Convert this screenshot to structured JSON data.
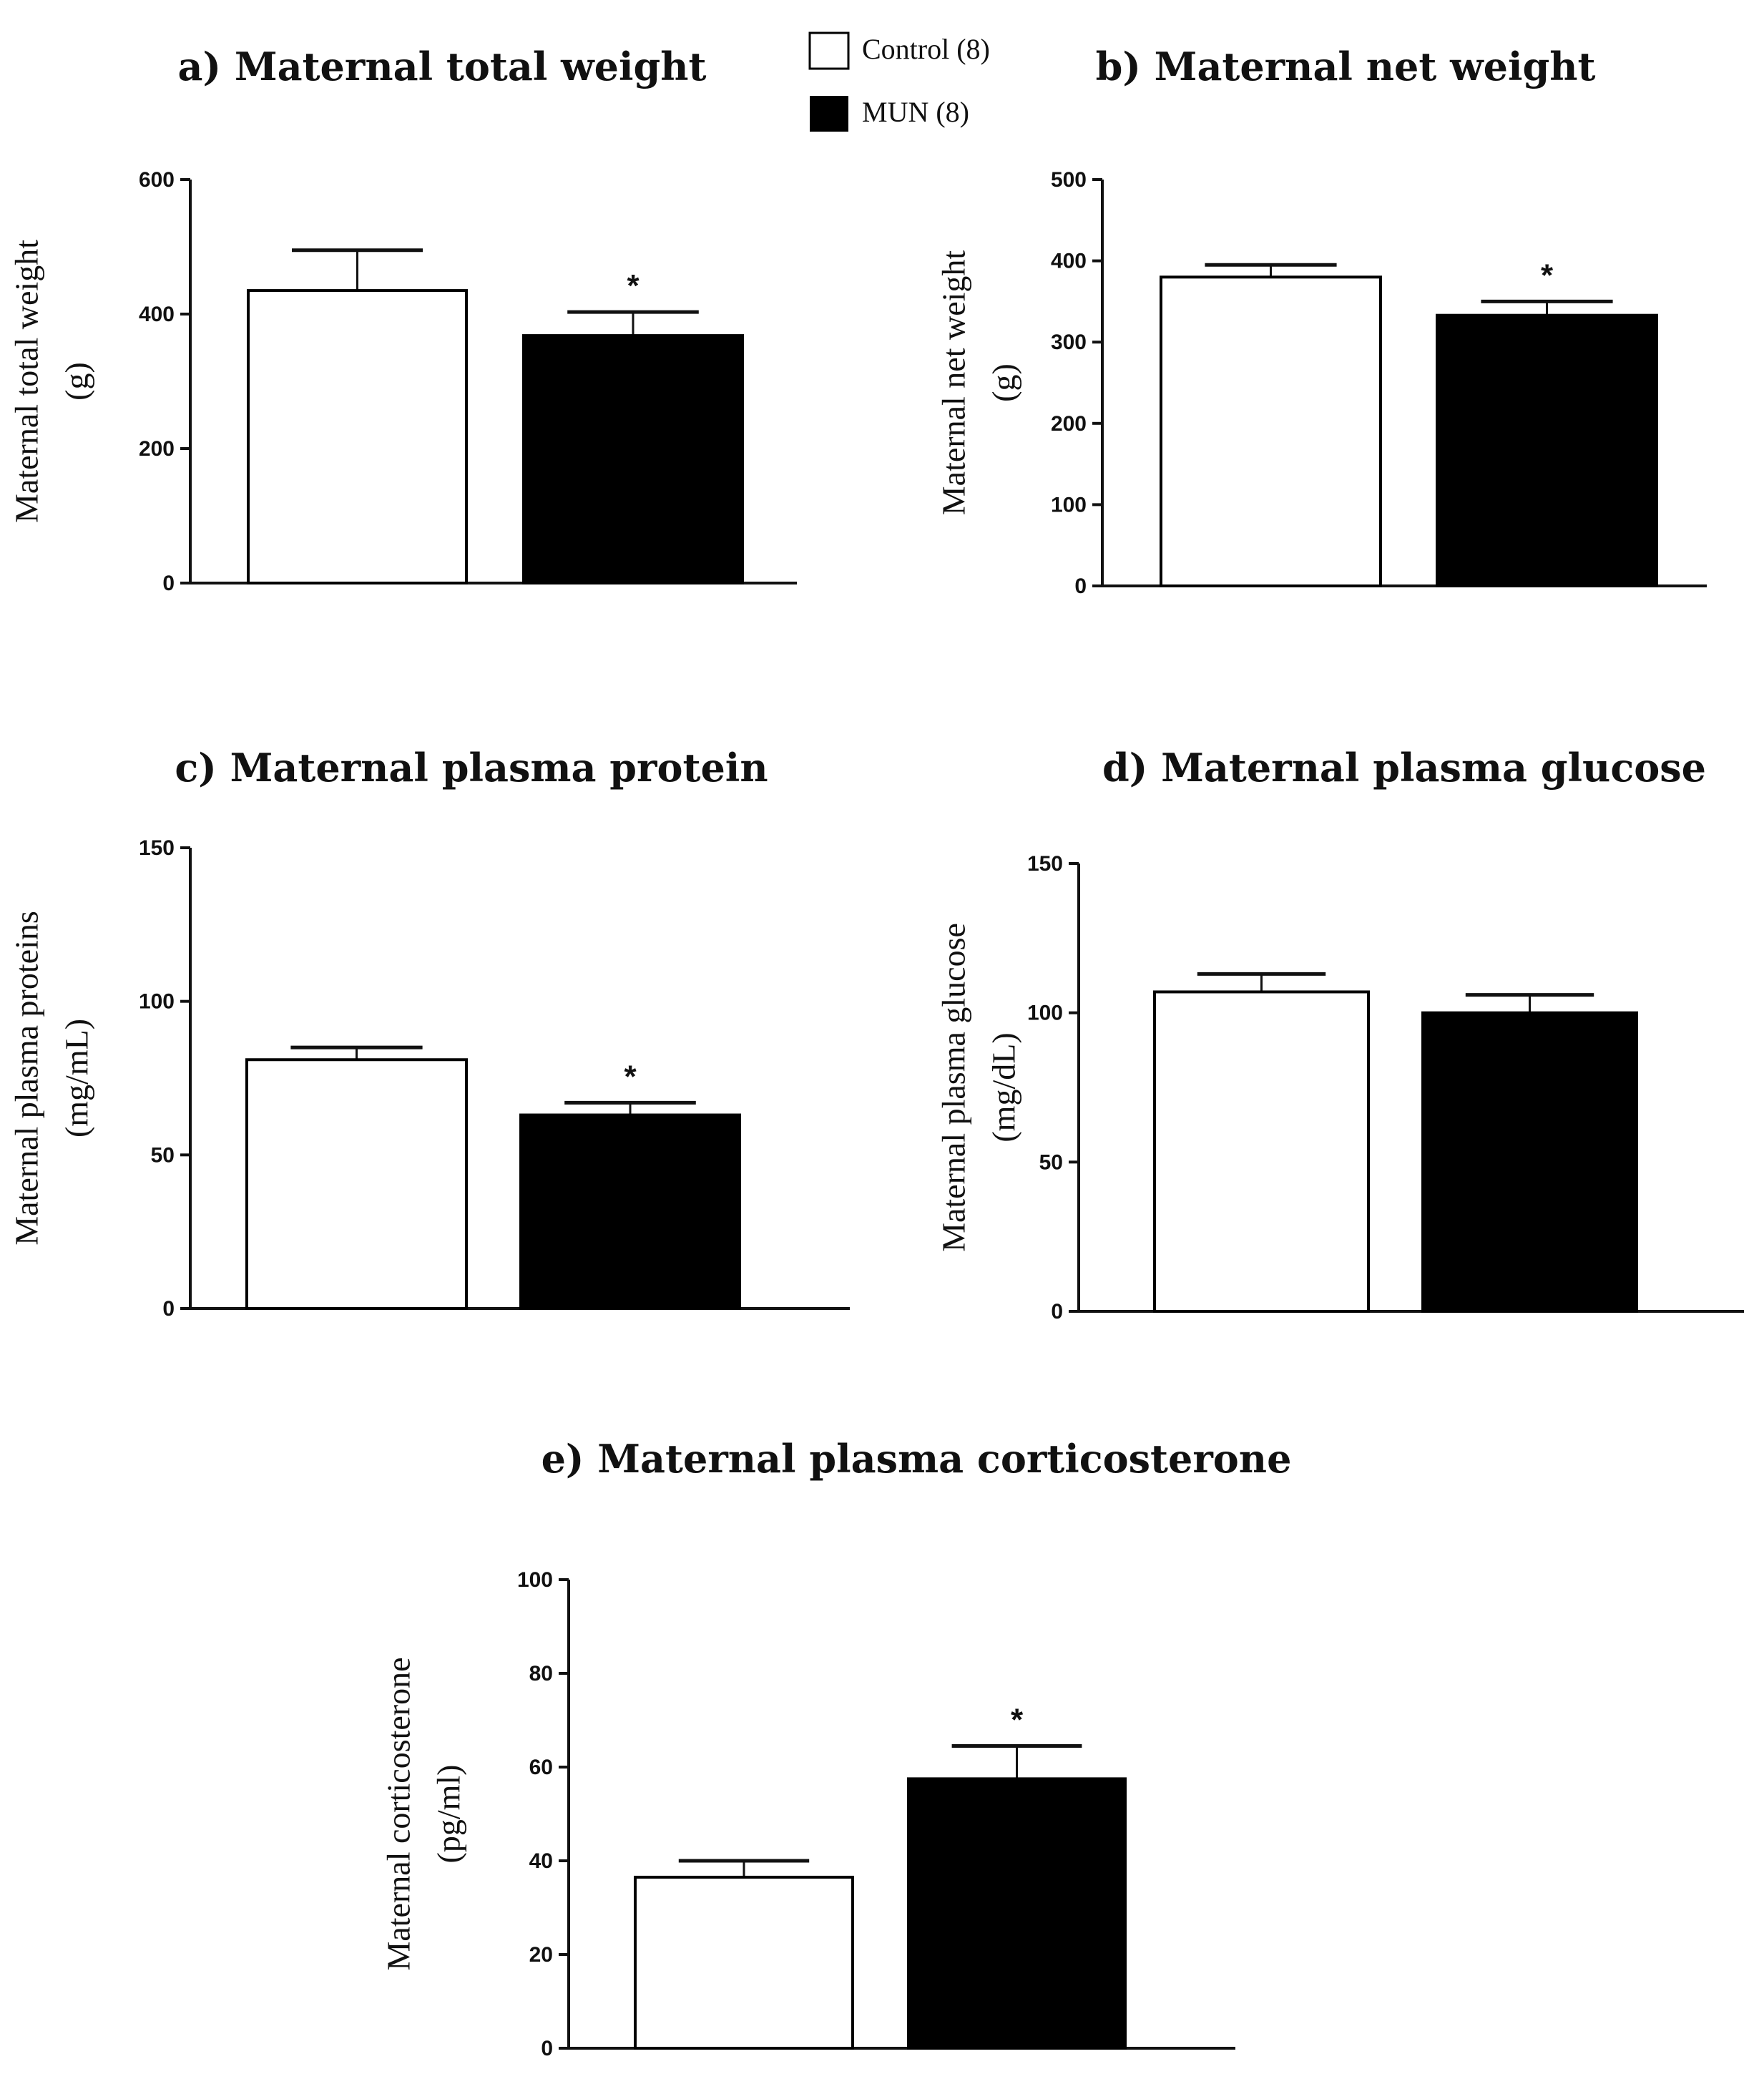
{
  "legend": {
    "items": [
      {
        "label": "Control (8)",
        "color": "#ffffff"
      },
      {
        "label": "MUN (8)",
        "color": "#000000"
      }
    ]
  },
  "chart_data": [
    {
      "type": "bar",
      "title": "a) Maternal total weight",
      "ylabel": [
        "Maternal total weight",
        "(g)"
      ],
      "categories": [
        "Control (8)",
        "MUN (8)"
      ],
      "values": [
        435,
        368
      ],
      "errors": [
        60,
        35
      ],
      "significant": [
        false,
        true
      ],
      "ylim": [
        0,
        600
      ],
      "yticks": [
        0,
        200,
        400,
        600
      ]
    },
    {
      "type": "bar",
      "title": "b) Maternal net weight",
      "ylabel": [
        "Maternal net weight",
        "(g)"
      ],
      "categories": [
        "Control (8)",
        "MUN (8)"
      ],
      "values": [
        380,
        333
      ],
      "errors": [
        15,
        17
      ],
      "significant": [
        false,
        true
      ],
      "ylim": [
        0,
        500
      ],
      "yticks": [
        0,
        100,
        200,
        300,
        400,
        500
      ]
    },
    {
      "type": "bar",
      "title": "c) Maternal plasma protein",
      "ylabel": [
        "Maternal plasma proteins",
        "(mg/mL)"
      ],
      "categories": [
        "Control (8)",
        "MUN (8)"
      ],
      "values": [
        81,
        63
      ],
      "errors": [
        4,
        4
      ],
      "significant": [
        false,
        true
      ],
      "ylim": [
        0,
        150
      ],
      "yticks": [
        0,
        50,
        100,
        150
      ]
    },
    {
      "type": "bar",
      "title": "d) Maternal plasma glucose",
      "ylabel": [
        "Maternal plasma glucose",
        "(mg/dL)"
      ],
      "categories": [
        "Control (8)",
        "MUN (8)"
      ],
      "values": [
        107,
        100
      ],
      "errors": [
        6,
        6
      ],
      "significant": [
        false,
        false
      ],
      "ylim": [
        0,
        150
      ],
      "yticks": [
        0,
        50,
        100,
        150
      ]
    },
    {
      "type": "bar",
      "title": "e) Maternal plasma corticosterone",
      "ylabel": [
        "Maternal  corticosterone",
        "(pg/ml)"
      ],
      "categories": [
        "Control (8)",
        "MUN (8)"
      ],
      "values": [
        36.5,
        57.5
      ],
      "errors": [
        3.5,
        7
      ],
      "significant": [
        false,
        true
      ],
      "ylim": [
        0,
        100
      ],
      "yticks": [
        0,
        20,
        40,
        60,
        80,
        100
      ]
    }
  ],
  "significance_marker": "*"
}
